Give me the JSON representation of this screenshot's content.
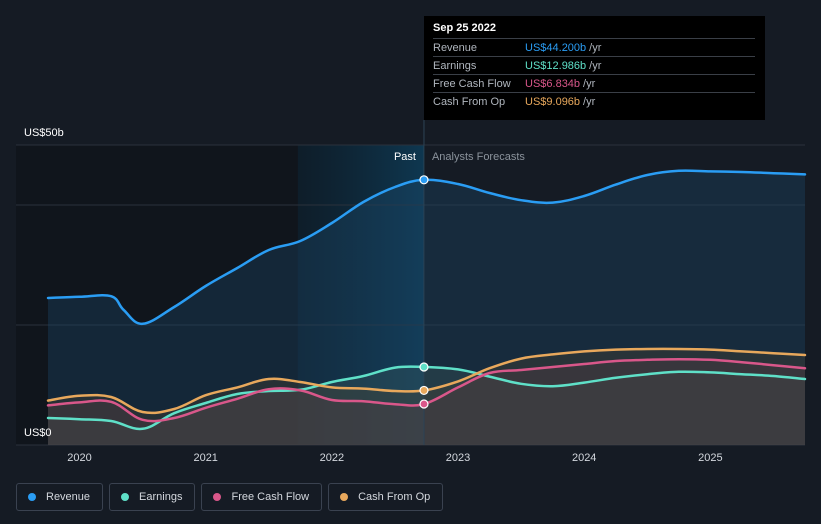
{
  "tooltip": {
    "date": "Sep 25 2022",
    "rows": [
      {
        "label": "Revenue",
        "value": "US$44.200b",
        "unit": "/yr",
        "color": "#2a9df4"
      },
      {
        "label": "Earnings",
        "value": "US$12.986b",
        "unit": "/yr",
        "color": "#5fe0c8"
      },
      {
        "label": "Free Cash Flow",
        "value": "US$6.834b",
        "unit": "/yr",
        "color": "#d9578a"
      },
      {
        "label": "Cash From Op",
        "value": "US$9.096b",
        "unit": "/yr",
        "color": "#e8a85c"
      }
    ]
  },
  "legend": [
    {
      "label": "Revenue",
      "color": "#2a9df4"
    },
    {
      "label": "Earnings",
      "color": "#5fe0c8"
    },
    {
      "label": "Free Cash Flow",
      "color": "#d9578a"
    },
    {
      "label": "Cash From Op",
      "color": "#e8a85c"
    }
  ],
  "chart_data": {
    "type": "line",
    "y_axis_labels": [
      "US$50b",
      "US$0"
    ],
    "ylim": [
      0,
      50
    ],
    "xlim": [
      2019.75,
      2025.75
    ],
    "x_ticks": [
      2020,
      2021,
      2022,
      2023,
      2024,
      2025
    ],
    "past_label": "Past",
    "forecast_label": "Analysts Forecasts",
    "divider_x": 2022.73,
    "highlight_start": 2021.73,
    "grid": true,
    "legend_position": "bottom-left",
    "series": [
      {
        "name": "Revenue",
        "color": "#2a9df4",
        "x": [
          2019.75,
          2020.0,
          2020.25,
          2020.35,
          2020.5,
          2020.75,
          2021.0,
          2021.25,
          2021.5,
          2021.75,
          2022.0,
          2022.25,
          2022.5,
          2022.73,
          2023.0,
          2023.25,
          2023.5,
          2023.75,
          2024.0,
          2024.25,
          2024.5,
          2024.75,
          2025.0,
          2025.25,
          2025.5,
          2025.75
        ],
        "values": [
          24.5,
          24.7,
          24.8,
          22.5,
          20.2,
          23.0,
          26.5,
          29.5,
          32.5,
          34.0,
          37.0,
          40.5,
          43.0,
          44.2,
          43.5,
          42.0,
          40.8,
          40.4,
          41.5,
          43.4,
          45.0,
          45.7,
          45.6,
          45.5,
          45.3,
          45.1
        ]
      },
      {
        "name": "Earnings",
        "color": "#5fe0c8",
        "x": [
          2019.75,
          2020.0,
          2020.25,
          2020.5,
          2020.75,
          2021.0,
          2021.25,
          2021.5,
          2021.75,
          2022.0,
          2022.25,
          2022.5,
          2022.73,
          2023.0,
          2023.25,
          2023.5,
          2023.75,
          2024.0,
          2024.25,
          2024.5,
          2024.75,
          2025.0,
          2025.25,
          2025.5,
          2025.75
        ],
        "values": [
          4.5,
          4.3,
          4.0,
          2.7,
          5.3,
          7.0,
          8.5,
          9.0,
          9.2,
          10.5,
          11.5,
          12.9,
          13.0,
          12.6,
          11.4,
          10.2,
          9.8,
          10.4,
          11.2,
          11.8,
          12.2,
          12.1,
          11.8,
          11.5,
          11.0
        ]
      },
      {
        "name": "Free Cash Flow",
        "color": "#d9578a",
        "x": [
          2019.75,
          2020.0,
          2020.25,
          2020.5,
          2020.75,
          2021.0,
          2021.25,
          2021.5,
          2021.75,
          2022.0,
          2022.25,
          2022.5,
          2022.73,
          2023.0,
          2023.25,
          2023.5,
          2023.75,
          2024.0,
          2024.25,
          2024.5,
          2024.75,
          2025.0,
          2025.25,
          2025.5,
          2025.75
        ],
        "values": [
          6.6,
          7.1,
          7.2,
          4.2,
          4.5,
          6.2,
          7.7,
          9.3,
          9.1,
          7.5,
          7.3,
          6.8,
          6.834,
          9.6,
          12.0,
          12.5,
          13.0,
          13.5,
          14.0,
          14.2,
          14.3,
          14.2,
          13.8,
          13.3,
          12.8
        ]
      },
      {
        "name": "Cash From Op",
        "color": "#e8a85c",
        "x": [
          2019.75,
          2020.0,
          2020.25,
          2020.5,
          2020.75,
          2021.0,
          2021.25,
          2021.5,
          2021.75,
          2022.0,
          2022.25,
          2022.5,
          2022.73,
          2023.0,
          2023.25,
          2023.5,
          2023.75,
          2024.0,
          2024.25,
          2024.5,
          2024.75,
          2025.0,
          2025.25,
          2025.5,
          2025.75
        ],
        "values": [
          7.4,
          8.2,
          8.0,
          5.5,
          6.0,
          8.3,
          9.6,
          11.0,
          10.5,
          9.6,
          9.4,
          9.0,
          9.096,
          10.6,
          12.8,
          14.4,
          15.1,
          15.6,
          15.9,
          16.0,
          16.0,
          15.9,
          15.6,
          15.3,
          15.0
        ]
      }
    ]
  }
}
